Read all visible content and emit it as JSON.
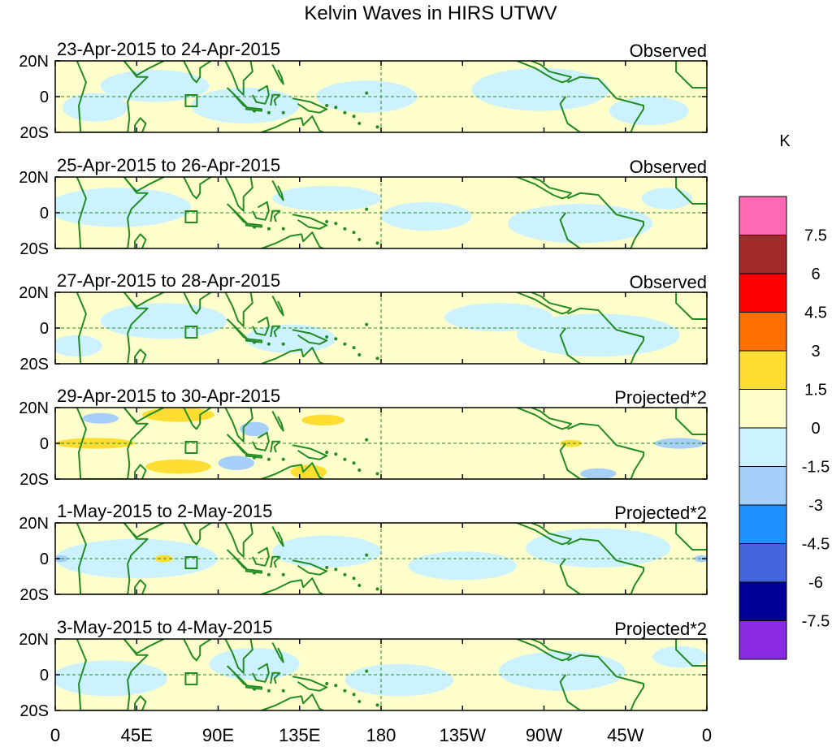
{
  "chart_data": {
    "type": "heatmap",
    "title": "Kelvin Waves in HIRS UTWV",
    "x_tick_labels": [
      "0",
      "45E",
      "90E",
      "135E",
      "180",
      "135W",
      "90W",
      "45W",
      "0"
    ],
    "x_tick_lon": [
      0,
      45,
      90,
      135,
      180,
      225,
      270,
      315,
      360
    ],
    "y_tick_labels": [
      "20N",
      "0",
      "20S"
    ],
    "y_tick_lat": [
      20,
      0,
      -20
    ],
    "lon_range": [
      0,
      360
    ],
    "lat_range": [
      -20,
      20
    ],
    "panels": [
      {
        "date_range": "23-Apr-2015 to 24-Apr-2015",
        "label": "Observed",
        "blobs": [
          {
            "lon": 55,
            "lat": 6,
            "rlon": 30,
            "rlat": 9,
            "v": -1.5
          },
          {
            "lon": 105,
            "lat": -5,
            "rlon": 30,
            "rlat": 10,
            "v": -1.5
          },
          {
            "lon": 172,
            "lat": 0,
            "rlon": 28,
            "rlat": 9,
            "v": -1.5
          },
          {
            "lon": 268,
            "lat": 4,
            "rlon": 38,
            "rlat": 12,
            "v": -1.5
          },
          {
            "lon": 328,
            "lat": -8,
            "rlon": 22,
            "rlat": 8,
            "v": -1.5
          },
          {
            "lon": 22,
            "lat": -6,
            "rlon": 18,
            "rlat": 8,
            "v": -1.5
          }
        ]
      },
      {
        "date_range": "25-Apr-2015 to 26-Apr-2015",
        "label": "Observed",
        "blobs": [
          {
            "lon": 35,
            "lat": 3,
            "rlon": 40,
            "rlat": 11,
            "v": -1.5
          },
          {
            "lon": 150,
            "lat": 8,
            "rlon": 30,
            "rlat": 7,
            "v": -1.5
          },
          {
            "lon": 205,
            "lat": -2,
            "rlon": 25,
            "rlat": 8,
            "v": -1.5
          },
          {
            "lon": 290,
            "lat": -6,
            "rlon": 40,
            "rlat": 11,
            "v": -1.5
          },
          {
            "lon": 338,
            "lat": 8,
            "rlon": 14,
            "rlat": 6,
            "v": -1.5
          }
        ]
      },
      {
        "date_range": "27-Apr-2015 to 28-Apr-2015",
        "label": "Observed",
        "blobs": [
          {
            "lon": 60,
            "lat": 4,
            "rlon": 35,
            "rlat": 10,
            "v": -1.5
          },
          {
            "lon": 130,
            "lat": -6,
            "rlon": 25,
            "rlat": 8,
            "v": -1.5
          },
          {
            "lon": 245,
            "lat": 6,
            "rlon": 30,
            "rlat": 8,
            "v": -1.5
          },
          {
            "lon": 300,
            "lat": -4,
            "rlon": 45,
            "rlat": 12,
            "v": -1.5
          },
          {
            "lon": 12,
            "lat": -10,
            "rlon": 14,
            "rlat": 6,
            "v": -1.5
          }
        ]
      },
      {
        "date_range": "29-Apr-2015 to 30-Apr-2015",
        "label": "Projected*2",
        "blobs": [
          {
            "lon": 22,
            "lat": 0,
            "rlon": 22,
            "rlat": 3,
            "v": 1.5
          },
          {
            "lon": 68,
            "lat": 16,
            "rlon": 20,
            "rlat": 4,
            "v": 1.5
          },
          {
            "lon": 68,
            "lat": -13,
            "rlon": 18,
            "rlat": 4,
            "v": 1.5
          },
          {
            "lon": 148,
            "lat": 13,
            "rlon": 12,
            "rlat": 3,
            "v": 1.5
          },
          {
            "lon": 140,
            "lat": -16,
            "rlon": 10,
            "rlat": 4,
            "v": 1.5
          },
          {
            "lon": 285,
            "lat": 0,
            "rlon": 6,
            "rlat": 2,
            "v": 1.5
          },
          {
            "lon": 25,
            "lat": 14,
            "rlon": 10,
            "rlat": 3,
            "v": -3
          },
          {
            "lon": 100,
            "lat": -11,
            "rlon": 10,
            "rlat": 4,
            "v": -3
          },
          {
            "lon": 110,
            "lat": 8,
            "rlon": 8,
            "rlat": 4,
            "v": -3
          },
          {
            "lon": 345,
            "lat": 0,
            "rlon": 14,
            "rlat": 3,
            "v": -3
          },
          {
            "lon": 300,
            "lat": -17,
            "rlon": 10,
            "rlat": 3,
            "v": -3
          }
        ]
      },
      {
        "date_range": "1-May-2015 to 2-May-2015",
        "label": "Projected*2",
        "blobs": [
          {
            "lon": 45,
            "lat": 0,
            "rlon": 45,
            "rlat": 11,
            "v": -1.5
          },
          {
            "lon": 150,
            "lat": 4,
            "rlon": 30,
            "rlat": 9,
            "v": -1.5
          },
          {
            "lon": 225,
            "lat": -4,
            "rlon": 30,
            "rlat": 8,
            "v": -1.5
          },
          {
            "lon": 300,
            "lat": 6,
            "rlon": 40,
            "rlat": 11,
            "v": -1.5
          },
          {
            "lon": 60,
            "lat": 0,
            "rlon": 5,
            "rlat": 2,
            "v": 1.5
          },
          {
            "lon": 3,
            "lat": 0,
            "rlon": 4,
            "rlat": 2,
            "v": -3
          },
          {
            "lon": 357,
            "lat": 0,
            "rlon": 4,
            "rlat": 2,
            "v": -3
          }
        ]
      },
      {
        "date_range": "3-May-2015 to 4-May-2015",
        "label": "Projected*2",
        "blobs": [
          {
            "lon": 30,
            "lat": -2,
            "rlon": 32,
            "rlat": 10,
            "v": -1.5
          },
          {
            "lon": 110,
            "lat": 6,
            "rlon": 25,
            "rlat": 9,
            "v": -1.5
          },
          {
            "lon": 190,
            "lat": -3,
            "rlon": 30,
            "rlat": 9,
            "v": -1.5
          },
          {
            "lon": 280,
            "lat": 2,
            "rlon": 35,
            "rlat": 11,
            "v": -1.5
          },
          {
            "lon": 345,
            "lat": 10,
            "rlon": 15,
            "rlat": 6,
            "v": -1.5
          }
        ]
      }
    ],
    "colorbar": {
      "unit": "K",
      "levels": [
        "7.5",
        "6",
        "4.5",
        "3",
        "1.5",
        "0",
        "-1.5",
        "-3",
        "-4.5",
        "-6",
        "-7.5"
      ],
      "colors": [
        "#ff69b4",
        "#a52a2a",
        "#ff0000",
        "#ff7000",
        "#ffdd33",
        "#ffffcc",
        "#ccf2ff",
        "#a6cffa",
        "#1e90ff",
        "#4466dd",
        "#000099",
        "#8a2be2"
      ]
    },
    "colors": {
      "positive_fill": "#ffffcc",
      "negative_fill": "#ccf2ff",
      "coastline": "#228b22",
      "reference_line": "#228b22"
    }
  }
}
